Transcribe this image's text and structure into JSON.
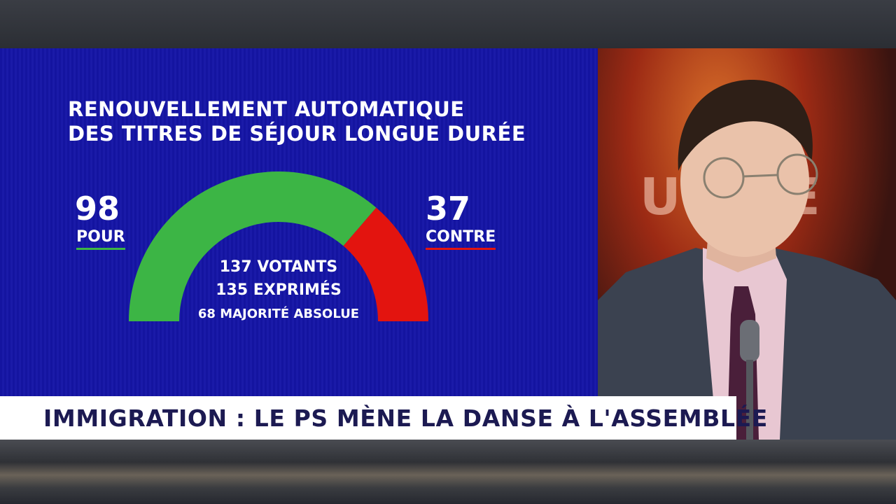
{
  "graphic": {
    "title_line1": "RENOUVELLEMENT AUTOMATIQUE",
    "title_line2": "DES TITRES DE SÉJOUR LONGUE DURÉE",
    "pour_count": "98",
    "pour_label": "POUR",
    "contre_count": "37",
    "contre_label": "CONTRE",
    "votants": "137 VOTANTS",
    "exprimes": "135 EXPRIMÉS",
    "majorite": "68 MAJORITÉ ABSOLUE",
    "pour_color": "#3cb545",
    "contre_color": "#e3140f"
  },
  "gauge": {
    "pour": 98,
    "contre": 37
  },
  "banner": {
    "headline": "IMMIGRATION : LE PS MÈNE LA DANSE À L'ASSEMBLÉE"
  }
}
